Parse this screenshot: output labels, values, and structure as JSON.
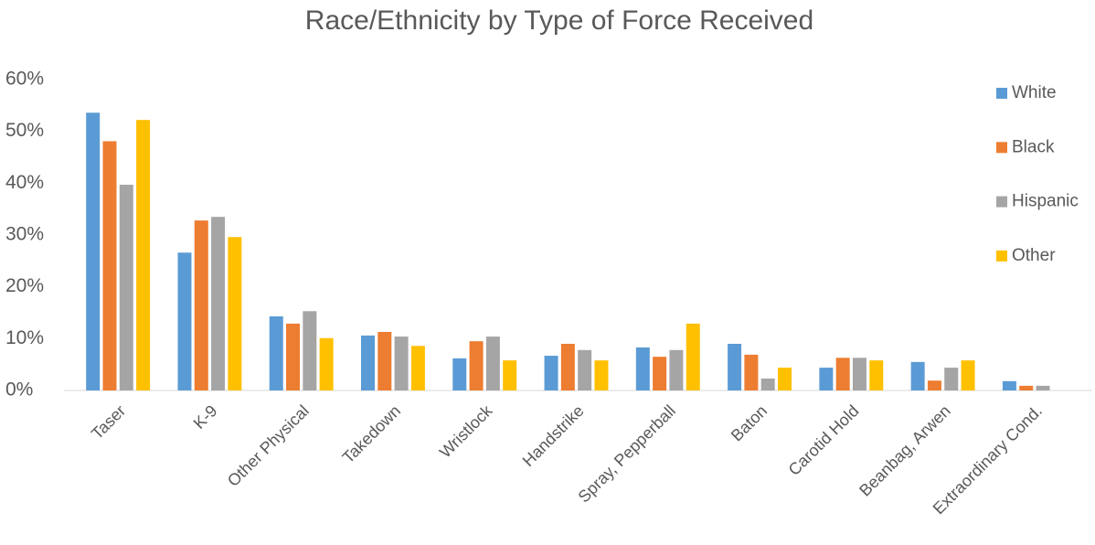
{
  "chart_data": {
    "type": "bar",
    "title": "Race/Ethnicity by Type of Force Received",
    "categories": [
      "Taser",
      "K-9",
      "Other Physical",
      "Takedown",
      "Wristlock",
      "Handstrike",
      "Spray, Pepperball",
      "Baton",
      "Carotid Hold",
      "Beanbag, Arwen",
      "Extraordinary Cond."
    ],
    "series": [
      {
        "name": "White",
        "color": "#5b9bd5",
        "values": [
          53.6,
          26.6,
          14.3,
          10.6,
          6.2,
          6.7,
          8.3,
          9.0,
          4.4,
          5.5,
          1.8
        ]
      },
      {
        "name": "Black",
        "color": "#ed7d31",
        "values": [
          48.1,
          32.8,
          12.9,
          11.3,
          9.5,
          9.0,
          6.5,
          6.9,
          6.3,
          1.9,
          0.9
        ]
      },
      {
        "name": "Hispanic",
        "color": "#a5a5a5",
        "values": [
          39.7,
          33.5,
          15.3,
          10.4,
          10.4,
          7.8,
          7.8,
          2.3,
          6.3,
          4.4,
          0.9
        ]
      },
      {
        "name": "Other",
        "color": "#ffc000",
        "values": [
          52.2,
          29.6,
          10.1,
          8.6,
          5.8,
          5.8,
          12.9,
          4.4,
          5.8,
          5.8,
          0
        ]
      }
    ],
    "ylim": [
      0,
      60
    ],
    "yticks": [
      {
        "value": 0,
        "label": "0%"
      },
      {
        "value": 10,
        "label": "10%"
      },
      {
        "value": 20,
        "label": "20%"
      },
      {
        "value": 30,
        "label": "30%"
      },
      {
        "value": 40,
        "label": "40%"
      },
      {
        "value": 50,
        "label": "50%"
      },
      {
        "value": 60,
        "label": "60%"
      }
    ],
    "grid": false,
    "legend": "right"
  }
}
